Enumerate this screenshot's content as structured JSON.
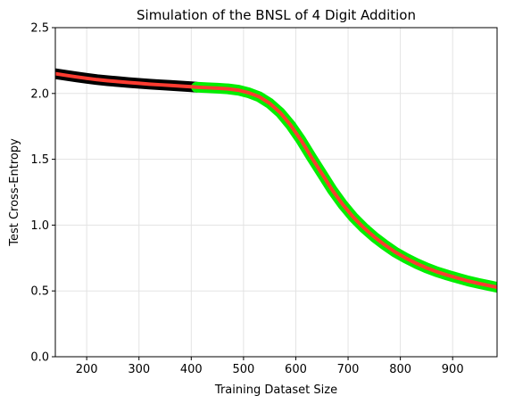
{
  "chart_data": {
    "type": "line",
    "title": "Simulation of the BNSL of 4 Digit Addition",
    "xlabel": "Training Dataset Size",
    "ylabel": "Test Cross-Entropy",
    "xlim": [
      140,
      985
    ],
    "ylim": [
      0.0,
      2.5
    ],
    "xticks": [
      "200",
      "300",
      "400",
      "500",
      "600",
      "700",
      "800",
      "900"
    ],
    "yticks": [
      "0.0",
      "0.5",
      "1.0",
      "1.5",
      "2.0",
      "2.5"
    ],
    "grid": true,
    "series": [
      {
        "role": "observed-train-range",
        "color": "#000000",
        "x": [
          140,
          160,
          180,
          200,
          220,
          240,
          260,
          280,
          300,
          320,
          340,
          360,
          380,
          400,
          410
        ],
        "y": [
          2.15,
          2.138,
          2.126,
          2.115,
          2.105,
          2.097,
          2.09,
          2.083,
          2.077,
          2.071,
          2.066,
          2.061,
          2.056,
          2.051,
          2.048
        ]
      },
      {
        "role": "observed-extrapolation-range",
        "color": "#00ee00",
        "x": [
          410,
          430,
          450,
          470,
          490,
          510,
          530,
          550,
          570,
          590,
          610,
          630,
          650,
          670,
          690,
          710,
          730,
          750,
          770,
          790,
          810,
          830,
          850,
          870,
          890,
          910,
          930,
          950,
          970,
          985
        ],
        "y": [
          2.048,
          2.044,
          2.04,
          2.035,
          2.025,
          2.005,
          1.975,
          1.925,
          1.855,
          1.76,
          1.645,
          1.515,
          1.39,
          1.265,
          1.155,
          1.06,
          0.98,
          0.91,
          0.85,
          0.795,
          0.75,
          0.71,
          0.675,
          0.645,
          0.62,
          0.597,
          0.575,
          0.557,
          0.54,
          0.528
        ]
      },
      {
        "role": "bnsl-fit",
        "color": "#ff3b30",
        "x": [
          140,
          160,
          180,
          200,
          220,
          240,
          260,
          280,
          300,
          320,
          340,
          360,
          380,
          400,
          410,
          430,
          450,
          470,
          490,
          510,
          530,
          550,
          570,
          590,
          610,
          630,
          650,
          670,
          690,
          710,
          730,
          750,
          770,
          790,
          810,
          830,
          850,
          870,
          890,
          910,
          930,
          950,
          970,
          985
        ],
        "y": [
          2.15,
          2.138,
          2.126,
          2.115,
          2.105,
          2.097,
          2.09,
          2.083,
          2.077,
          2.071,
          2.066,
          2.061,
          2.056,
          2.051,
          2.048,
          2.044,
          2.04,
          2.035,
          2.025,
          2.005,
          1.975,
          1.925,
          1.855,
          1.76,
          1.645,
          1.515,
          1.39,
          1.265,
          1.155,
          1.06,
          0.98,
          0.91,
          0.85,
          0.795,
          0.75,
          0.71,
          0.675,
          0.645,
          0.62,
          0.597,
          0.575,
          0.557,
          0.54,
          0.528
        ]
      }
    ]
  }
}
